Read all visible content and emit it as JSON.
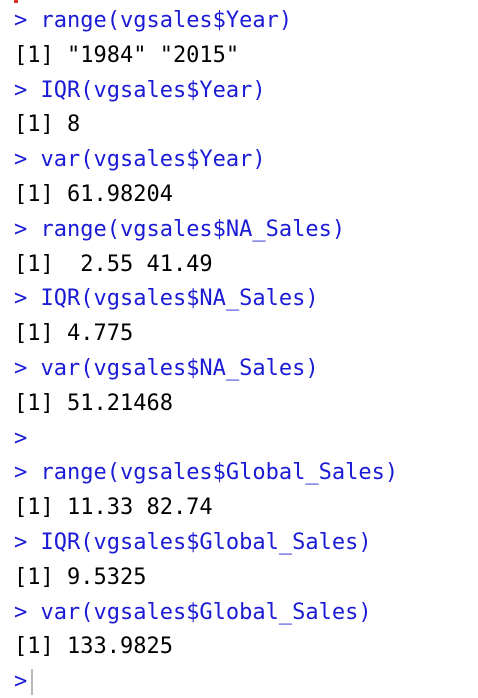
{
  "console": {
    "prompt": ">",
    "lines": [
      {
        "kind": "cmd",
        "text": " range(vgsales$Year)"
      },
      {
        "kind": "out",
        "text": "[1] \"1984\" \"2015\""
      },
      {
        "kind": "cmd",
        "text": " IQR(vgsales$Year)"
      },
      {
        "kind": "out",
        "text": "[1] 8"
      },
      {
        "kind": "cmd",
        "text": " var(vgsales$Year)"
      },
      {
        "kind": "out",
        "text": "[1] 61.98204"
      },
      {
        "kind": "cmd",
        "text": " range(vgsales$NA_Sales)"
      },
      {
        "kind": "out",
        "text": "[1]  2.55 41.49"
      },
      {
        "kind": "cmd",
        "text": " IQR(vgsales$NA_Sales)"
      },
      {
        "kind": "out",
        "text": "[1] 4.775"
      },
      {
        "kind": "cmd",
        "text": " var(vgsales$NA_Sales)"
      },
      {
        "kind": "out",
        "text": "[1] 51.21468"
      },
      {
        "kind": "cmd",
        "text": ""
      },
      {
        "kind": "cmd",
        "text": " range(vgsales$Global_Sales)"
      },
      {
        "kind": "out",
        "text": "[1] 11.33 82.74"
      },
      {
        "kind": "cmd",
        "text": " IQR(vgsales$Global_Sales)"
      },
      {
        "kind": "out",
        "text": "[1] 9.5325"
      },
      {
        "kind": "cmd",
        "text": " var(vgsales$Global_Sales)"
      },
      {
        "kind": "out",
        "text": "[1] 133.9825"
      }
    ],
    "colors": {
      "command": "#1b1bd6",
      "output": "#000000",
      "background": "#ffffff"
    }
  }
}
